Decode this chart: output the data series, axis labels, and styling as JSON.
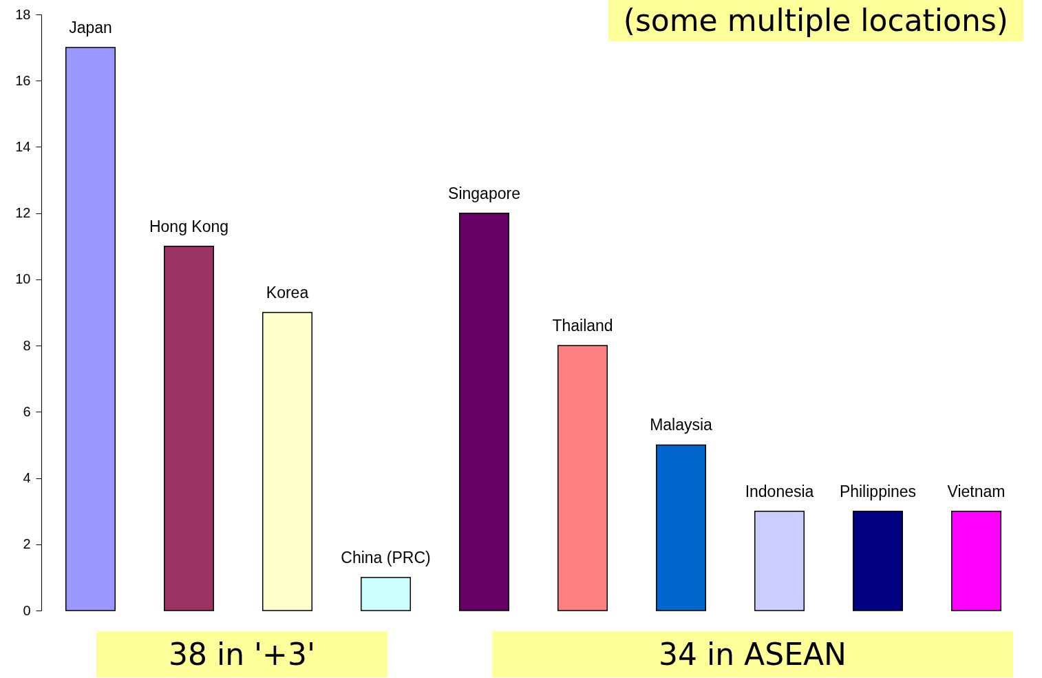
{
  "chart_data": {
    "type": "bar",
    "categories": [
      "Japan",
      "Hong Kong",
      "Korea",
      "China (PRC)",
      "Singapore",
      "Thailand",
      "Malaysia",
      "Indonesia",
      "Philippines",
      "Vietnam"
    ],
    "values": [
      17,
      11,
      9,
      1,
      12,
      8,
      5,
      3,
      3,
      3
    ],
    "colors": [
      "#9999ff",
      "#993366",
      "#ffffcc",
      "#ccffff",
      "#660066",
      "#ff8080",
      "#0066cc",
      "#ccccff",
      "#000080",
      "#ff00ff"
    ],
    "ylim": [
      0,
      18
    ],
    "yticks": [
      0,
      2,
      4,
      6,
      8,
      10,
      12,
      14,
      16,
      18
    ],
    "annotations": [
      "(some multiple locations)",
      "38 in '+3'",
      "34 in ASEAN"
    ]
  }
}
